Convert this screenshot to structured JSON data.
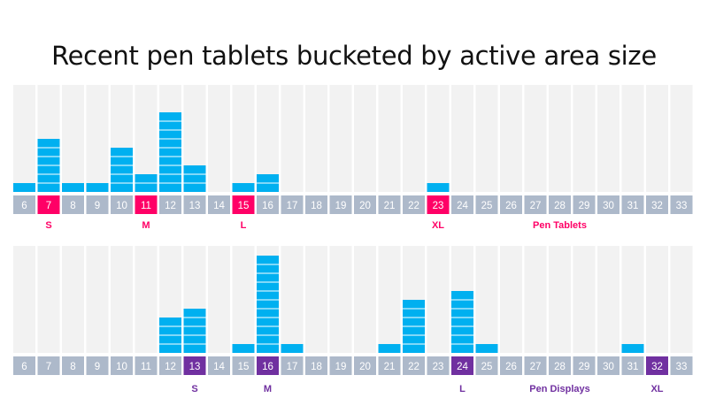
{
  "title": "Recent pen tablets bucketed by active area size",
  "colors": {
    "background_column": "#f2f2f2",
    "bar": "#00b0f0",
    "bar_line": "#ffffff",
    "tick_box": "#adb9ca",
    "tick_text": "#ffffff"
  },
  "chart_data": [
    {
      "type": "bar",
      "name": "Pen Tablets",
      "accent": "#ff0066",
      "categories": [
        6,
        7,
        8,
        9,
        10,
        11,
        12,
        13,
        14,
        15,
        16,
        17,
        18,
        19,
        20,
        21,
        22,
        23,
        24,
        25,
        26,
        27,
        28,
        29,
        30,
        31,
        32,
        33
      ],
      "values": [
        1,
        6,
        1,
        1,
        5,
        2,
        9,
        3,
        0,
        1,
        2,
        0,
        0,
        0,
        0,
        0,
        0,
        1,
        0,
        0,
        0,
        0,
        0,
        0,
        0,
        0,
        0,
        0
      ],
      "ylim": [
        0,
        12
      ],
      "size_labels": [
        {
          "label": "S",
          "category": 7
        },
        {
          "label": "M",
          "category": 11
        },
        {
          "label": "L",
          "category": 15
        },
        {
          "label": "XL",
          "category": 23
        }
      ],
      "series_label": {
        "label": "Pen Tablets",
        "category": 28
      }
    },
    {
      "type": "bar",
      "name": "Pen Displays",
      "accent": "#7030a0",
      "categories": [
        6,
        7,
        8,
        9,
        10,
        11,
        12,
        13,
        14,
        15,
        16,
        17,
        18,
        19,
        20,
        21,
        22,
        23,
        24,
        25,
        26,
        27,
        28,
        29,
        30,
        31,
        32,
        33
      ],
      "values": [
        0,
        0,
        0,
        0,
        0,
        0,
        4,
        5,
        0,
        1,
        11,
        1,
        0,
        0,
        0,
        1,
        6,
        0,
        7,
        1,
        0,
        0,
        0,
        0,
        0,
        1,
        0,
        0
      ],
      "ylim": [
        0,
        12
      ],
      "size_labels": [
        {
          "label": "S",
          "category": 13
        },
        {
          "label": "M",
          "category": 16
        },
        {
          "label": "L",
          "category": 24
        },
        {
          "label": "XL",
          "category": 32
        }
      ],
      "series_label": {
        "label": "Pen Displays",
        "category": 28
      }
    }
  ]
}
